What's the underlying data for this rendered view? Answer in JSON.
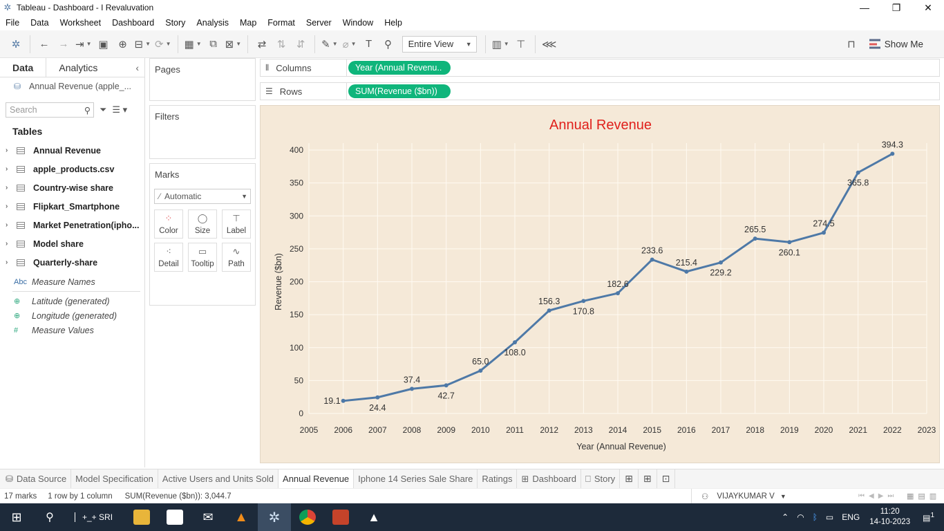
{
  "window": {
    "title": "Tableau - Dashboard - I Revaluvation"
  },
  "menu": [
    "File",
    "Data",
    "Worksheet",
    "Dashboard",
    "Story",
    "Analysis",
    "Map",
    "Format",
    "Server",
    "Window",
    "Help"
  ],
  "toolbar": {
    "view_select": "Entire View",
    "show_me": "Show Me"
  },
  "left_pane": {
    "tabs": [
      "Data",
      "Analytics"
    ],
    "datasource": "Annual Revenue (apple_...",
    "search_placeholder": "Search",
    "tables_heading": "Tables",
    "tables": [
      "Annual Revenue",
      "apple_products.csv",
      "Country-wise share",
      "Flipkart_Smartphone",
      "Market Penetration(ipho...",
      "Model share",
      "Quarterly-share"
    ],
    "fields": [
      {
        "type": "Abc",
        "name": "Measure Names"
      },
      {
        "type": "globe",
        "name": "Latitude (generated)"
      },
      {
        "type": "globe",
        "name": "Longitude (generated)"
      },
      {
        "type": "#",
        "name": "Measure Values"
      }
    ]
  },
  "cards": {
    "pages": "Pages",
    "filters": "Filters",
    "marks": "Marks",
    "marks_type": "Automatic",
    "mark_buttons": [
      "Color",
      "Size",
      "Label",
      "Detail",
      "Tooltip",
      "Path"
    ]
  },
  "shelves": {
    "columns_label": "Columns",
    "columns_pill": "Year (Annual Revenu..",
    "rows_label": "Rows",
    "rows_pill": "SUM(Revenue ($bn))"
  },
  "chart_data": {
    "type": "line",
    "title": "Annual Revenue",
    "xlabel": "Year (Annual Revenue)",
    "ylabel": "Revenue ($bn)",
    "x": [
      2006,
      2007,
      2008,
      2009,
      2010,
      2011,
      2012,
      2013,
      2014,
      2015,
      2016,
      2017,
      2018,
      2019,
      2020,
      2021,
      2022
    ],
    "values": [
      19.1,
      24.4,
      37.4,
      42.7,
      65.0,
      108.0,
      156.3,
      170.8,
      182.6,
      233.6,
      215.4,
      229.2,
      265.5,
      260.1,
      274.5,
      365.8,
      394.3
    ],
    "labels": [
      "19.1",
      "24.4",
      "37.4",
      "42.7",
      "65.0",
      "108.0",
      "156.3",
      "170.8",
      "182.6",
      "233.6",
      "215.4",
      "229.2",
      "265.5",
      "260.1",
      "274.5",
      "365.8",
      "394.3"
    ],
    "xticks": [
      "2005",
      "2006",
      "2007",
      "2008",
      "2009",
      "2010",
      "2011",
      "2012",
      "2013",
      "2014",
      "2015",
      "2016",
      "2017",
      "2018",
      "2019",
      "2020",
      "2021",
      "2022",
      "2023"
    ],
    "yticks": [
      "0",
      "50",
      "100",
      "150",
      "200",
      "250",
      "300",
      "350",
      "400"
    ],
    "xlim": [
      2005,
      2023
    ],
    "ylim": [
      0,
      400
    ],
    "grid": true,
    "colors": {
      "line": "#4e79a7",
      "title": "#e0201b",
      "background": "#f5e9d8"
    }
  },
  "sheet_tabs": [
    "Data Source",
    "Model Specification",
    "Active Users and Units Sold",
    "Annual Revenue",
    "Iphone 14 Series Sale Share",
    "Ratings",
    "Dashboard",
    "Story"
  ],
  "status": {
    "marks": "17 marks",
    "rows": "1 row by 1 column",
    "sum": "SUM(Revenue ($bn)): 3,044.7",
    "user": "VIJAYKUMAR V"
  },
  "taskbar": {
    "search_text": "+_+ SRI",
    "lang": "ENG",
    "time": "11:20",
    "date": "14-10-2023",
    "notif": "1"
  }
}
